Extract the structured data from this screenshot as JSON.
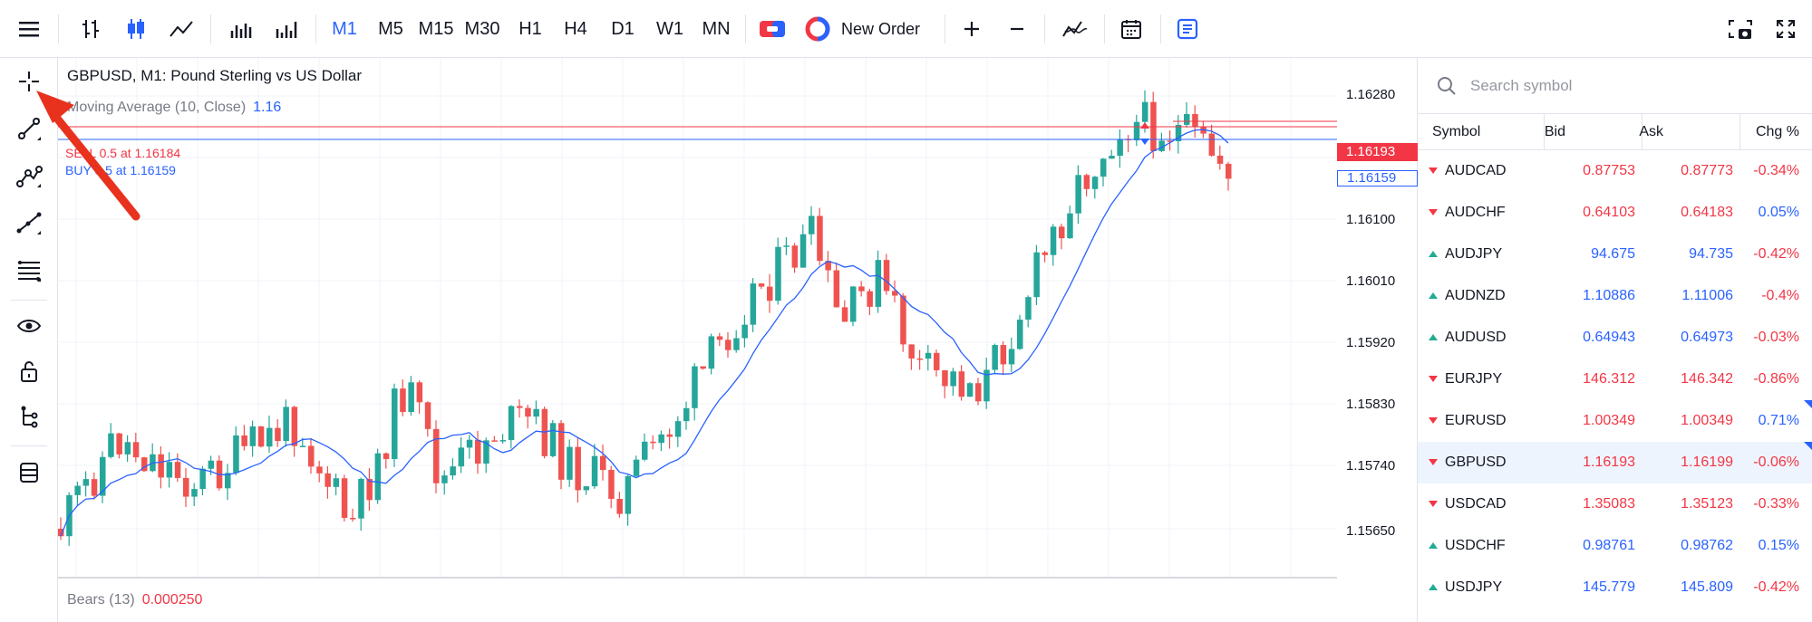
{
  "toolbar": {
    "timeframes": [
      "M1",
      "M5",
      "M15",
      "M30",
      "H1",
      "H4",
      "D1",
      "W1",
      "MN"
    ],
    "active_timeframe": "M1",
    "new_order_label": "New Order"
  },
  "chart": {
    "title": "GBPUSD, M1: Pound Sterling vs US Dollar",
    "ma_label": "Moving Average (10, Close)",
    "ma_value": "1.16",
    "sell_label": "SELL 0.5 at 1.16184",
    "buy_label": "BUY 0.5 at 1.16159",
    "bears_label": "Bears (13)",
    "bears_value": "0.000250",
    "price_ticks": [
      "1.16280",
      "1.16190",
      "1.16100",
      "1.16010",
      "1.15920",
      "1.15830",
      "1.15740",
      "1.15650"
    ],
    "bid_tag": "1.16193",
    "buy_tag": "1.16159",
    "colors": {
      "up": "#26a69a",
      "down": "#ef5350",
      "ma": "#2962ff",
      "sell_line": "#f23645",
      "buy_line": "#2962ff"
    }
  },
  "watchlist": {
    "search_placeholder": "Search symbol",
    "headers": {
      "symbol": "Symbol",
      "bid": "Bid",
      "ask": "Ask",
      "chg": "Chg %"
    },
    "rows": [
      {
        "symbol": "AUDCAD",
        "bid": "0.87753",
        "ask": "0.87773",
        "chg": "-0.34%",
        "dir": "down",
        "bid_color": "neg",
        "chg_color": "neg"
      },
      {
        "symbol": "AUDCHF",
        "bid": "0.64103",
        "ask": "0.64183",
        "chg": "0.05%",
        "dir": "down",
        "bid_color": "neg",
        "chg_color": "pos"
      },
      {
        "symbol": "AUDJPY",
        "bid": "94.675",
        "ask": "94.735",
        "chg": "-0.42%",
        "dir": "up",
        "bid_color": "pos",
        "chg_color": "neg"
      },
      {
        "symbol": "AUDNZD",
        "bid": "1.10886",
        "ask": "1.11006",
        "chg": "-0.4%",
        "dir": "up",
        "bid_color": "pos",
        "chg_color": "neg"
      },
      {
        "symbol": "AUDUSD",
        "bid": "0.64943",
        "ask": "0.64973",
        "chg": "-0.03%",
        "dir": "up",
        "bid_color": "pos",
        "chg_color": "neg"
      },
      {
        "symbol": "EURJPY",
        "bid": "146.312",
        "ask": "146.342",
        "chg": "-0.86%",
        "dir": "down",
        "bid_color": "neg",
        "chg_color": "neg"
      },
      {
        "symbol": "EURUSD",
        "bid": "1.00349",
        "ask": "1.00349",
        "chg": "0.71%",
        "dir": "down",
        "bid_color": "neg",
        "chg_color": "pos",
        "flag": true
      },
      {
        "symbol": "GBPUSD",
        "bid": "1.16193",
        "ask": "1.16199",
        "chg": "-0.06%",
        "dir": "down",
        "bid_color": "neg",
        "chg_color": "neg",
        "flag": true,
        "selected": true
      },
      {
        "symbol": "USDCAD",
        "bid": "1.35083",
        "ask": "1.35123",
        "chg": "-0.33%",
        "dir": "down",
        "bid_color": "neg",
        "chg_color": "neg"
      },
      {
        "symbol": "USDCHF",
        "bid": "0.98761",
        "ask": "0.98762",
        "chg": "0.15%",
        "dir": "up",
        "bid_color": "pos",
        "chg_color": "pos"
      },
      {
        "symbol": "USDJPY",
        "bid": "145.779",
        "ask": "145.809",
        "chg": "-0.42%",
        "dir": "up",
        "bid_color": "pos",
        "chg_color": "neg"
      }
    ]
  }
}
